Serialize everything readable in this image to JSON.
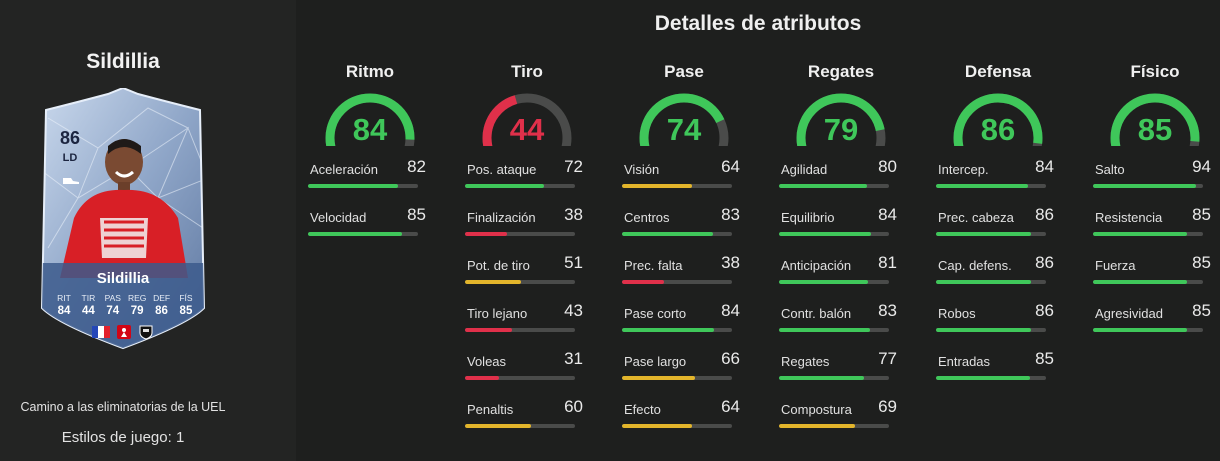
{
  "player": {
    "name": "Sildillia",
    "rating": "86",
    "position": "LD",
    "card_stats": [
      {
        "label": "RIT",
        "value": "84"
      },
      {
        "label": "TIR",
        "value": "44"
      },
      {
        "label": "PAS",
        "value": "74"
      },
      {
        "label": "REG",
        "value": "79"
      },
      {
        "label": "DEF",
        "value": "86"
      },
      {
        "label": "FÍS",
        "value": "85"
      }
    ],
    "promo": "Camino a las eliminatorias de la UEL",
    "playstyles": "Estilos de juego: 1"
  },
  "title": "Detalles de atributos",
  "colors": {
    "green": "#3fc75a",
    "yellow": "#e3b52b",
    "red": "#e0304a",
    "track": "#4a4b4a"
  },
  "categories": [
    {
      "title": "Ritmo",
      "value": 84,
      "attributes": [
        {
          "name": "Aceleración",
          "value": 82
        },
        {
          "name": "Velocidad",
          "value": 85
        }
      ]
    },
    {
      "title": "Tiro",
      "value": 44,
      "attributes": [
        {
          "name": "Pos. ataque",
          "value": 72
        },
        {
          "name": "Finalización",
          "value": 38
        },
        {
          "name": "Pot. de tiro",
          "value": 51
        },
        {
          "name": "Tiro lejano",
          "value": 43
        },
        {
          "name": "Voleas",
          "value": 31
        },
        {
          "name": "Penaltis",
          "value": 60
        }
      ]
    },
    {
      "title": "Pase",
      "value": 74,
      "attributes": [
        {
          "name": "Visión",
          "value": 64
        },
        {
          "name": "Centros",
          "value": 83
        },
        {
          "name": "Prec. falta",
          "value": 38
        },
        {
          "name": "Pase corto",
          "value": 84
        },
        {
          "name": "Pase largo",
          "value": 66
        },
        {
          "name": "Efecto",
          "value": 64
        }
      ]
    },
    {
      "title": "Regates",
      "value": 79,
      "attributes": [
        {
          "name": "Agilidad",
          "value": 80
        },
        {
          "name": "Equilibrio",
          "value": 84
        },
        {
          "name": "Anticipación",
          "value": 81
        },
        {
          "name": "Contr. balón",
          "value": 83
        },
        {
          "name": "Regates",
          "value": 77
        },
        {
          "name": "Compostura",
          "value": 69
        }
      ]
    },
    {
      "title": "Defensa",
      "value": 86,
      "attributes": [
        {
          "name": "Intercep.",
          "value": 84
        },
        {
          "name": "Prec. cabeza",
          "value": 86
        },
        {
          "name": "Cap. defens.",
          "value": 86
        },
        {
          "name": "Robos",
          "value": 86
        },
        {
          "name": "Entradas",
          "value": 85
        }
      ]
    },
    {
      "title": "Físico",
      "value": 85,
      "attributes": [
        {
          "name": "Salto",
          "value": 94
        },
        {
          "name": "Resistencia",
          "value": 85
        },
        {
          "name": "Fuerza",
          "value": 85
        },
        {
          "name": "Agresividad",
          "value": 85
        }
      ]
    }
  ]
}
